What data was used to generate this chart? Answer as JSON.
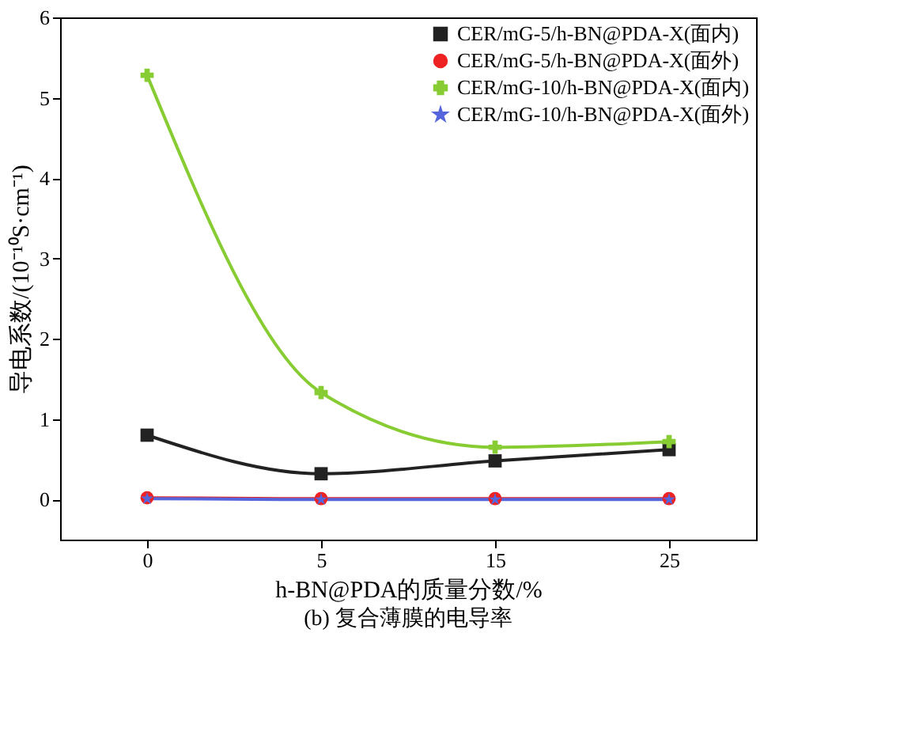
{
  "chart_data": {
    "type": "line",
    "xlabel": "h-BN@PDA的质量分数/%",
    "ylabel": "导电系数/(10⁻¹⁰S·cm⁻¹)",
    "categories": [
      "0",
      "5",
      "15",
      "25"
    ],
    "series": [
      {
        "name": "CER/mG-5/h-BN@PDA-X(面内)",
        "color": "#222222",
        "marker": "square",
        "values": [
          0.8,
          0.32,
          0.48,
          0.62
        ]
      },
      {
        "name": "CER/mG-5/h-BN@PDA-X(面外)",
        "color": "#ee2222",
        "marker": "circle",
        "values": [
          0.02,
          0.01,
          0.01,
          0.01
        ]
      },
      {
        "name": "CER/mG-10/h-BN@PDA-X(面内)",
        "color": "#88cc33",
        "marker": "cross",
        "values": [
          5.28,
          1.33,
          0.65,
          0.72
        ]
      },
      {
        "name": "CER/mG-10/h-BN@PDA-X(面外)",
        "color": "#5566dd",
        "marker": "star",
        "values": [
          0.01,
          0.0,
          0.0,
          0.0
        ]
      }
    ],
    "ylim": [
      -0.5,
      6
    ],
    "yticks": [
      0,
      1,
      2,
      3,
      4,
      5,
      6
    ],
    "grid": false,
    "legend": "top right",
    "line_style": "solid",
    "annotations": [
      "(b) 复合薄膜的电导率"
    ]
  }
}
